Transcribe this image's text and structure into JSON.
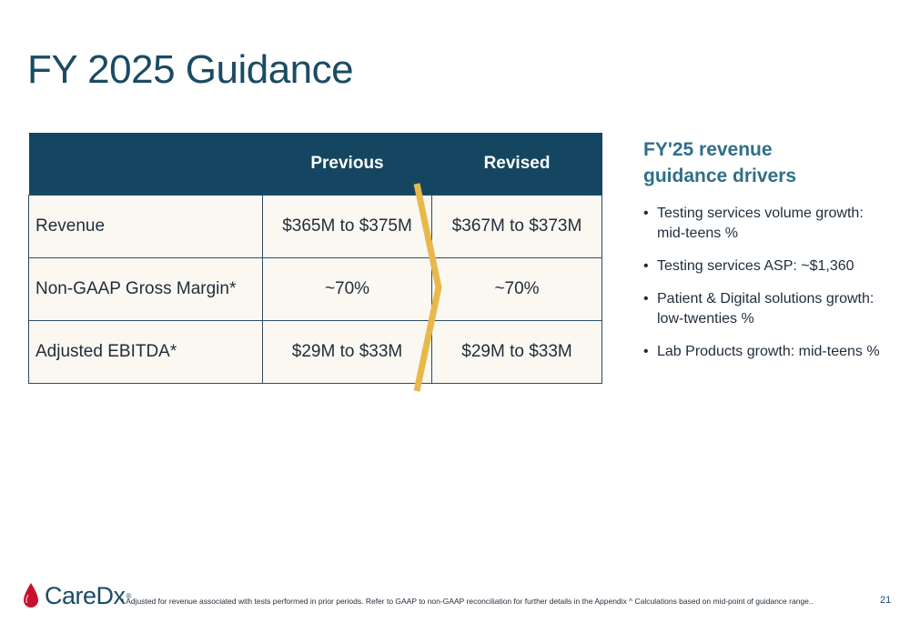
{
  "title": "FY 2025 Guidance",
  "table": {
    "headers": [
      "",
      "Previous",
      "Revised"
    ],
    "rows": [
      {
        "label": "Revenue",
        "previous": "$365M to $375M",
        "revised": "$367M to $373M"
      },
      {
        "label": "Non-GAAP Gross Margin*",
        "previous": "~70%",
        "revised": "~70%"
      },
      {
        "label": "Adjusted EBITDA*",
        "previous": "$29M to $33M",
        "revised": "$29M to $33M"
      }
    ]
  },
  "drivers": {
    "heading_line1": "FY'25 revenue",
    "heading_line2": "guidance drivers",
    "items": [
      "Testing services volume growth: mid-teens %",
      "Testing services ASP: ~$1,360",
      "Patient & Digital solutions growth: low-twenties %",
      "Lab Products growth: mid-teens %"
    ]
  },
  "footer": {
    "logo_text": "CareDx",
    "logo_mark": "®",
    "footnote": "* Adjusted for revenue associated with tests performed in prior periods. Refer to GAAP to non-GAAP reconciliation for further details in the Appendix ^ Calculations based on mid-point of guidance range..",
    "page_number": "21"
  },
  "colors": {
    "header_bg": "#154661",
    "title": "#1b4b63",
    "accent_chevron": "#e8b84a",
    "heading_accent": "#2f6f8a",
    "row_bg": "#fbf7f1",
    "logo_drop": "#c8102e"
  }
}
